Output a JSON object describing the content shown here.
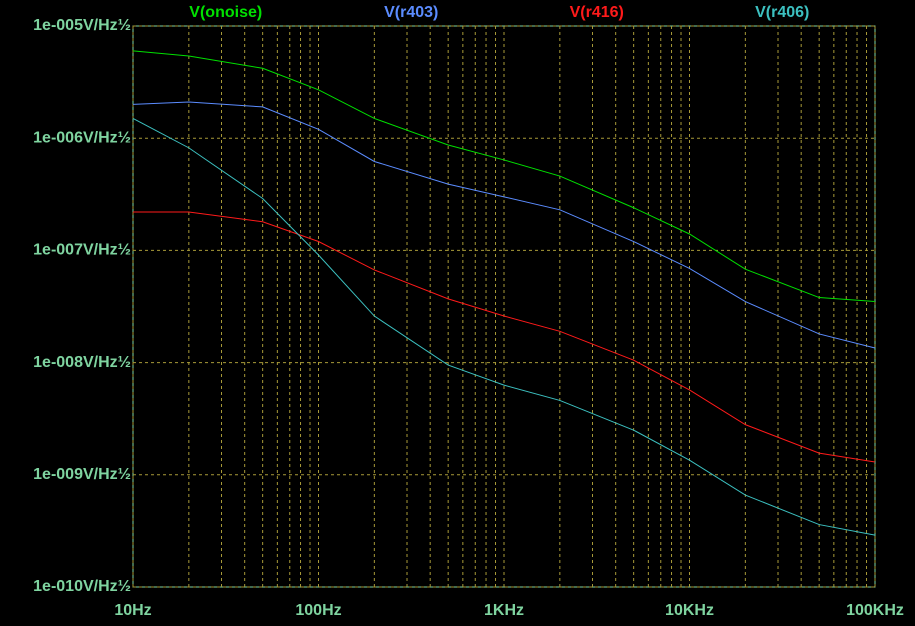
{
  "chart_data": {
    "type": "line",
    "log_x": true,
    "log_y": true,
    "grid": true,
    "legend": "top",
    "x": [
      10,
      20,
      50,
      100,
      200,
      500,
      1000,
      2000,
      5000,
      10000,
      20000,
      50000,
      100000
    ],
    "series": [
      {
        "name": "V(onoise)",
        "color": "#00e000",
        "values": [
          6e-06,
          5.4e-06,
          4.2e-06,
          2.7e-06,
          1.5e-06,
          8.7e-07,
          6.4e-07,
          4.6e-07,
          2.4e-07,
          1.4e-07,
          6.8e-08,
          3.8e-08,
          3.5e-08
        ]
      },
      {
        "name": "V(r403)",
        "color": "#5b8cff",
        "values": [
          2e-06,
          2.1e-06,
          1.9e-06,
          1.2e-06,
          6.2e-07,
          3.9e-07,
          3e-07,
          2.3e-07,
          1.2e-07,
          6.9e-08,
          3.5e-08,
          1.8e-08,
          1.35e-08
        ]
      },
      {
        "name": "V(r416)",
        "color": "#ff1a1a",
        "values": [
          2.2e-07,
          2.2e-07,
          1.8e-07,
          1.2e-07,
          6.7e-08,
          3.7e-08,
          2.6e-08,
          1.9e-08,
          1.05e-08,
          5.7e-09,
          2.8e-09,
          1.56e-09,
          1.3e-09
        ]
      },
      {
        "name": "V(r406)",
        "color": "#3cc0c0",
        "values": [
          1.5e-06,
          8.2e-07,
          2.9e-07,
          9.1e-08,
          2.6e-08,
          9.5e-09,
          6.3e-09,
          4.6e-09,
          2.5e-09,
          1.35e-09,
          6.6e-10,
          3.6e-10,
          2.9e-10
        ]
      }
    ],
    "xlim": [
      10,
      100000
    ],
    "xticks": [
      {
        "value": 10,
        "label": "10Hz"
      },
      {
        "value": 100,
        "label": "100Hz"
      },
      {
        "value": 1000,
        "label": "1KHz"
      },
      {
        "value": 10000,
        "label": "10KHz"
      },
      {
        "value": 100000,
        "label": "100KHz"
      }
    ],
    "xminorticks": [
      20,
      30,
      40,
      50,
      60,
      70,
      80,
      90,
      200,
      300,
      400,
      500,
      600,
      700,
      800,
      900,
      2000,
      3000,
      4000,
      5000,
      6000,
      7000,
      8000,
      9000,
      20000,
      30000,
      40000,
      50000,
      60000,
      70000,
      80000,
      90000
    ],
    "ylim": [
      1e-10,
      1e-05
    ],
    "yticks": [
      {
        "value": 1e-10,
        "label": "1e-010V/Hz½"
      },
      {
        "value": 1e-09,
        "label": "1e-009V/Hz½"
      },
      {
        "value": 1e-08,
        "label": "1e-008V/Hz½"
      },
      {
        "value": 1e-07,
        "label": "1e-007V/Hz½"
      },
      {
        "value": 1e-06,
        "label": "1e-006V/Hz½"
      },
      {
        "value": 1e-05,
        "label": "1e-005V/Hz½"
      }
    ]
  }
}
